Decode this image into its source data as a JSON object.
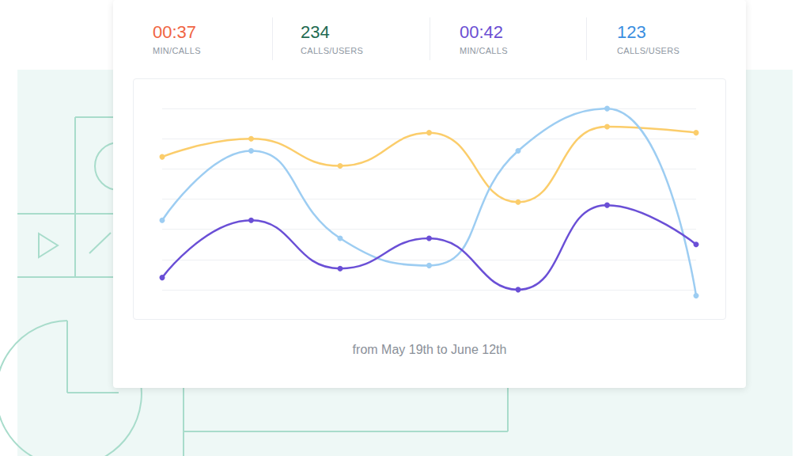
{
  "stats": [
    {
      "value": "00:37",
      "label": "MIN/CALLS",
      "color": "#f06543"
    },
    {
      "value": "234",
      "label": "CALLS/USERS",
      "color": "#1f6b52"
    },
    {
      "value": "00:42",
      "label": "MIN/CALLS",
      "color": "#6b4fd3"
    },
    {
      "value": "123",
      "label": "CALLS/USERS",
      "color": "#3b8ee0"
    }
  ],
  "chart_data": {
    "type": "line",
    "categories": [
      null,
      null,
      null,
      null,
      null,
      null,
      null
    ],
    "series": [
      {
        "color": "#fbcd6b",
        "marker": "circle",
        "values": [
          4.4,
          5.0,
          4.1,
          5.2,
          2.9,
          5.4,
          5.2
        ]
      },
      {
        "color": "#9dcdf2",
        "marker": "circle",
        "values": [
          2.3,
          4.6,
          1.7,
          0.8,
          4.6,
          6.0,
          -0.2
        ]
      },
      {
        "color": "#6a4fd6",
        "marker": "circle",
        "values": [
          0.4,
          2.3,
          0.7,
          1.7,
          0.0,
          2.8,
          1.5
        ]
      }
    ],
    "ylim": [
      -1,
      7
    ],
    "yticks": [
      0,
      1,
      2,
      3,
      4,
      5,
      6
    ],
    "grid": true,
    "tick_labels": false
  },
  "caption": "from May 19th to June 12th"
}
